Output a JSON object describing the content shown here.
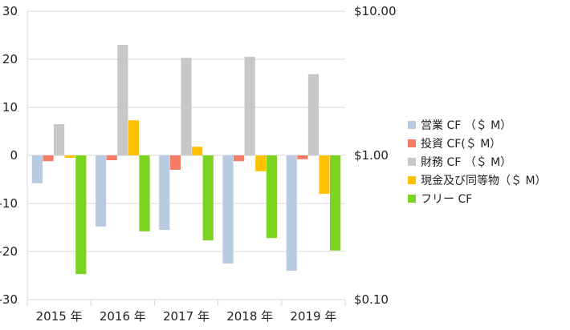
{
  "chart_data": {
    "type": "bar",
    "categories": [
      "2015 年",
      "2016 年",
      "2017 年",
      "2018 年",
      "2019 年"
    ],
    "series": [
      {
        "name": "営業 CF （＄ M）",
        "color": "#b8cbe0",
        "values": [
          -5.8,
          -14.8,
          -15.5,
          -22.5,
          -24.0
        ]
      },
      {
        "name": "投資 CF(＄ M）",
        "color": "#f47c64",
        "values": [
          -1.2,
          -1.0,
          -3.0,
          -1.2,
          -0.8
        ]
      },
      {
        "name": "財務 CF （＄ M）",
        "color": "#c8c8c8",
        "values": [
          6.5,
          23.0,
          20.3,
          20.5,
          16.9
        ]
      },
      {
        "name": "現金及び同等物（＄ M）",
        "color": "#ffc000",
        "values": [
          -0.5,
          7.3,
          1.8,
          -3.3,
          -8.0
        ]
      },
      {
        "name": "フリー CF",
        "color": "#7dd321",
        "values": [
          -24.7,
          -15.8,
          -17.7,
          -17.2,
          -19.8
        ]
      }
    ],
    "ylim": [
      -30,
      30
    ],
    "yticks": [
      "30",
      "20",
      "10",
      "0",
      "-10",
      "-20",
      "-30"
    ],
    "y2ticks": [
      "$10.00",
      "$1.00",
      "$0.10"
    ],
    "y2_scale": "log",
    "grid": true,
    "legend": "right"
  }
}
